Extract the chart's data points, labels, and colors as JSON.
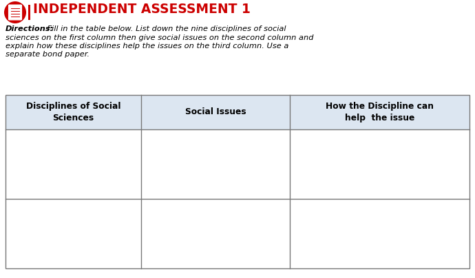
{
  "title": "INDEPENDENT ASSESSMENT 1",
  "title_color": "#cc0000",
  "directions_bold": "Directions:",
  "dir_line1_suffix": " Fill in the table below. List down the nine disciplines of social",
  "dir_line2": "sciences on the first column then give social issues on the second column and",
  "dir_line3": "explain how these disciplines help the issues on the third column. Use a",
  "dir_line4": "separate bond paper.",
  "col1_header": "Disciplines of Social\nSciences",
  "col2_header": "Social Issues",
  "col3_header": "How the Discipline can\nhelp  the issue",
  "header_bg": "#dce6f1",
  "header_text_color": "#000000",
  "table_border_color": "#777777",
  "bg_color": "#ffffff",
  "icon_color": "#cc0000",
  "separator_color": "#cc0000"
}
